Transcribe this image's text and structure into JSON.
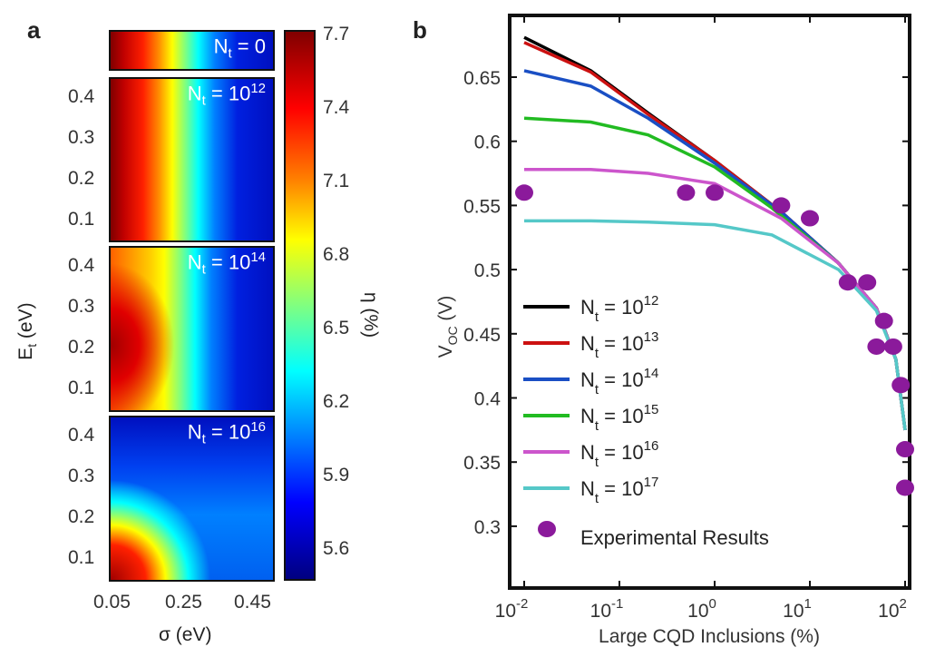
{
  "chart_data": [
    {
      "type": "heatmap",
      "panel_label": "a",
      "xlabel": "σ (eV)",
      "ylabel": "E_t (eV)",
      "x_ticks": [
        "0.05",
        "0.25",
        "0.45"
      ],
      "y_ticks": [
        "0.4",
        "0.3",
        "0.2",
        "0.1"
      ],
      "panels": [
        {
          "label": "N_t = 0",
          "base": "N",
          "sub": "t",
          "eq": " = 0",
          "sup": ""
        },
        {
          "label": "N_t = 10^12",
          "base": "N",
          "sub": "t",
          "eq": " = 10",
          "sup": "12"
        },
        {
          "label": "N_t = 10^14",
          "base": "N",
          "sub": "t",
          "eq": " = 10",
          "sup": "14"
        },
        {
          "label": "N_t = 10^16",
          "base": "N",
          "sub": "t",
          "eq": " = 10",
          "sup": "16"
        }
      ],
      "colorbar": {
        "label": "η (%)",
        "ticks": [
          "7.7",
          "7.4",
          "7.1",
          "6.8",
          "6.5",
          "6.2",
          "5.9",
          "5.6"
        ],
        "range": [
          5.5,
          7.7
        ],
        "colormap": "jet"
      }
    },
    {
      "type": "line",
      "panel_label": "b",
      "xlabel": "Large CQD Inclusions (%)",
      "ylabel": "V_OC (V)",
      "xscale": "log",
      "xlim": [
        0.008,
        130
      ],
      "ylim": [
        0.25,
        0.7
      ],
      "x_ticks": [
        {
          "base": "10",
          "exp": "-2",
          "v": 0.01
        },
        {
          "base": "10",
          "exp": "-1",
          "v": 0.1
        },
        {
          "base": "10",
          "exp": "0",
          "v": 1
        },
        {
          "base": "10",
          "exp": "1",
          "v": 10
        },
        {
          "base": "10",
          "exp": "2",
          "v": 100
        }
      ],
      "y_ticks": [
        "0.3",
        "0.35",
        "0.4",
        "0.45",
        "0.5",
        "0.55",
        "0.6",
        "0.65"
      ],
      "series": [
        {
          "name": "N_t = 10^12",
          "sup": "12",
          "color": "#000000",
          "x": [
            0.01,
            0.05,
            0.2,
            1,
            5,
            20,
            50,
            80,
            100
          ],
          "y": [
            0.681,
            0.655,
            0.622,
            0.585,
            0.545,
            0.505,
            0.47,
            0.43,
            0.375
          ]
        },
        {
          "name": "N_t = 10^13",
          "sup": "13",
          "color": "#cc1111",
          "x": [
            0.01,
            0.05,
            0.2,
            1,
            5,
            20,
            50,
            80,
            100
          ],
          "y": [
            0.677,
            0.654,
            0.621,
            0.585,
            0.545,
            0.505,
            0.47,
            0.43,
            0.375
          ]
        },
        {
          "name": "N_t = 10^14",
          "sup": "14",
          "color": "#1a4fc4",
          "x": [
            0.01,
            0.05,
            0.2,
            1,
            5,
            20,
            50,
            80,
            100
          ],
          "y": [
            0.655,
            0.643,
            0.618,
            0.583,
            0.545,
            0.505,
            0.47,
            0.43,
            0.375
          ]
        },
        {
          "name": "N_t = 10^15",
          "sup": "15",
          "color": "#22bb22",
          "x": [
            0.01,
            0.05,
            0.2,
            1,
            4,
            20,
            50,
            80,
            100
          ],
          "y": [
            0.618,
            0.615,
            0.605,
            0.58,
            0.548,
            0.505,
            0.47,
            0.43,
            0.375
          ]
        },
        {
          "name": "N_t = 10^16",
          "sup": "16",
          "color": "#cc55cc",
          "x": [
            0.01,
            0.05,
            0.2,
            1,
            5,
            20,
            50,
            80,
            100
          ],
          "y": [
            0.578,
            0.578,
            0.575,
            0.567,
            0.54,
            0.505,
            0.47,
            0.43,
            0.375
          ]
        },
        {
          "name": "N_t = 10^17",
          "sup": "17",
          "color": "#55c8c8",
          "x": [
            0.01,
            0.05,
            0.2,
            1,
            4,
            20,
            50,
            80,
            100
          ],
          "y": [
            0.538,
            0.538,
            0.537,
            0.535,
            0.527,
            0.5,
            0.468,
            0.43,
            0.375
          ]
        }
      ],
      "experimental": {
        "name": "Experimental Results",
        "color": "#8b1a9b",
        "x": [
          0.01,
          0.5,
          1,
          5,
          10,
          25,
          40,
          60,
          50,
          75,
          90,
          100,
          100
        ],
        "y": [
          0.56,
          0.56,
          0.56,
          0.55,
          0.54,
          0.49,
          0.49,
          0.46,
          0.44,
          0.44,
          0.41,
          0.36,
          0.33
        ]
      }
    }
  ]
}
